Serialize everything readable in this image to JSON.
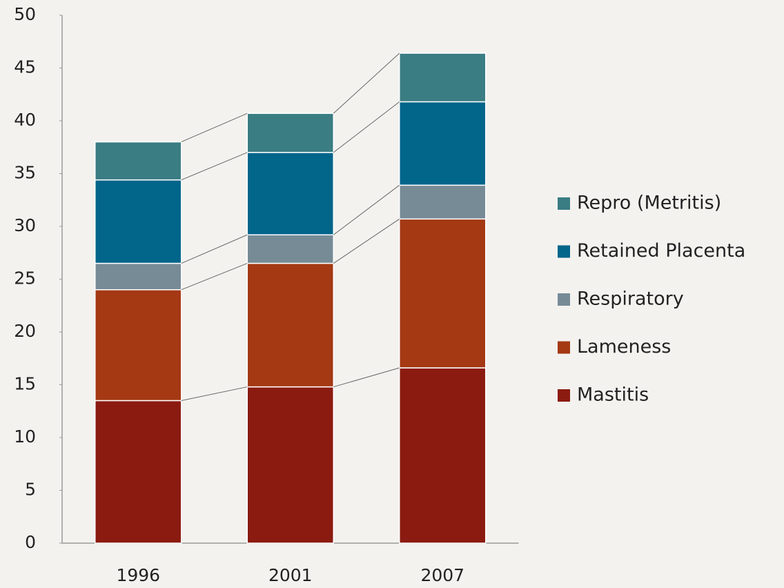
{
  "chart_data": {
    "type": "stacked_bar",
    "categories": [
      "1996",
      "2001",
      "2007"
    ],
    "series": [
      {
        "name": "Mastitis",
        "color": "#8b1b10",
        "values": [
          13.5,
          14.8,
          16.6
        ]
      },
      {
        "name": "Lameness",
        "color": "#a43914",
        "values": [
          10.5,
          11.7,
          14.1
        ]
      },
      {
        "name": "Respiratory",
        "color": "#778b97",
        "values": [
          2.5,
          2.7,
          3.2
        ]
      },
      {
        "name": "Retained Placenta",
        "color": "#02658a",
        "values": [
          7.9,
          7.8,
          7.9
        ]
      },
      {
        "name": "Repro (Metritis)",
        "color": "#3a7d83",
        "values": [
          3.6,
          3.7,
          4.6
        ]
      }
    ],
    "ylim": [
      0,
      50
    ],
    "yticks": [
      0,
      5,
      10,
      15,
      20,
      25,
      30,
      35,
      40,
      45,
      50
    ],
    "legend": "right",
    "grid": false
  }
}
